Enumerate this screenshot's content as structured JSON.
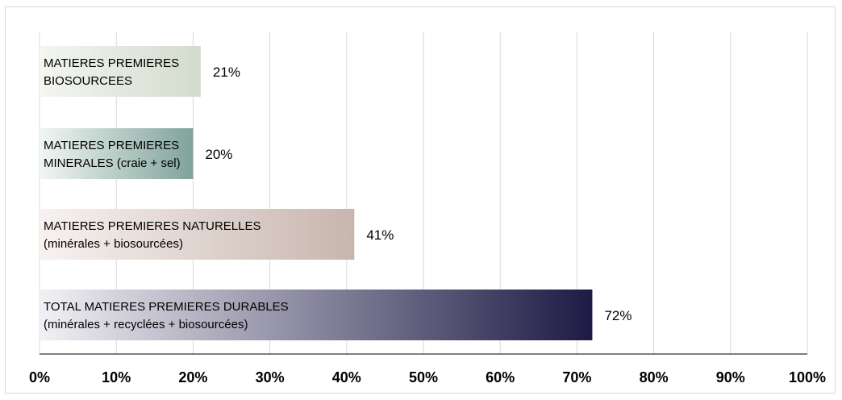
{
  "chart_data": {
    "type": "bar",
    "orientation": "horizontal",
    "title": "",
    "xlabel": "",
    "ylabel": "",
    "xlim": [
      0,
      100
    ],
    "x_ticks": [
      "0%",
      "10%",
      "20%",
      "30%",
      "40%",
      "50%",
      "60%",
      "70%",
      "80%",
      "90%",
      "100%"
    ],
    "grid": true,
    "legend": "none",
    "categories": [
      {
        "label_lines": [
          "MATIERES PREMIERES",
          "BIOSOURCEES"
        ],
        "value": 21,
        "value_label": "21%",
        "gradient": [
          "#f4f6f1",
          "#d2dbcc"
        ]
      },
      {
        "label_lines": [
          "MATIERES PREMIERES",
          "MINERALES (craie + sel)"
        ],
        "value": 20,
        "value_label": "20%",
        "gradient": [
          "#f2f6f4",
          "#7fa39a"
        ]
      },
      {
        "label_lines": [
          "MATIERES PREMIERES NATURELLES",
          "(minérales + biosourcées)"
        ],
        "value": 41,
        "value_label": "41%",
        "gradient": [
          "#f7f2f0",
          "#c8b6ae"
        ]
      },
      {
        "label_lines": [
          "TOTAL MATIERES PREMIERES DURABLES",
          "(minérales + recyclées + biosourcées)"
        ],
        "value": 72,
        "value_label": "72%",
        "gradient": [
          "#f1f1f5",
          "#1e1a45"
        ]
      }
    ]
  }
}
